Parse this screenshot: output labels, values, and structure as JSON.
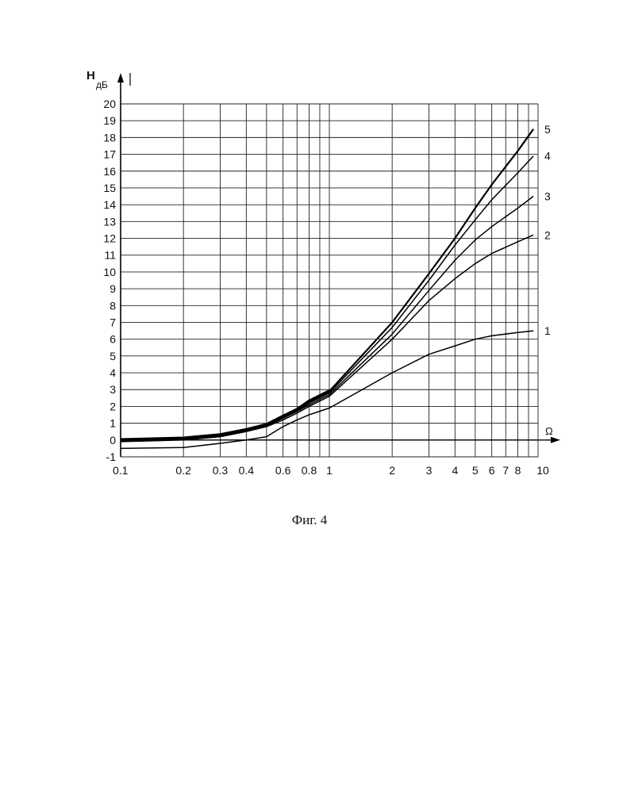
{
  "caption": "Фиг. 4",
  "chart_data": {
    "type": "line",
    "xscale": "log",
    "xlim": [
      0.1,
      10
    ],
    "ylim": [
      -1,
      20
    ],
    "grid": true,
    "ylabel_main": "H",
    "ylabel_sub": "дБ",
    "xlabel": "Ω",
    "x_ticks": [
      {
        "v": 0.1,
        "label": "0.1"
      },
      {
        "v": 0.2,
        "label": "0.2"
      },
      {
        "v": 0.3,
        "label": "0.3"
      },
      {
        "v": 0.4,
        "label": "0.4"
      },
      {
        "v": 0.6,
        "label": "0.6"
      },
      {
        "v": 0.8,
        "label": "0.8"
      },
      {
        "v": 1,
        "label": "1"
      },
      {
        "v": 2,
        "label": "2"
      },
      {
        "v": 3,
        "label": "3"
      },
      {
        "v": 4,
        "label": "4"
      },
      {
        "v": 5,
        "label": "5"
      },
      {
        "v": 6,
        "label": "6"
      },
      {
        "v": 7,
        "label": "7"
      },
      {
        "v": 8,
        "label": "8"
      },
      {
        "v": 10,
        "label": "10"
      }
    ],
    "y_ticks": [
      "-1",
      "0",
      "1",
      "2",
      "3",
      "4",
      "5",
      "6",
      "7",
      "8",
      "9",
      "10",
      "11",
      "12",
      "13",
      "14",
      "15",
      "16",
      "17",
      "18",
      "19",
      "20"
    ],
    "series": [
      {
        "name": "1",
        "x": [
          0.1,
          0.2,
          0.3,
          0.4,
          0.5,
          0.6,
          0.7,
          0.8,
          1,
          2,
          3,
          4,
          5,
          6,
          8,
          9.5
        ],
        "y": [
          -0.5,
          -0.45,
          -0.2,
          0.0,
          0.2,
          0.8,
          1.2,
          1.5,
          1.9,
          4.0,
          5.1,
          5.6,
          6.0,
          6.2,
          6.4,
          6.5
        ]
      },
      {
        "name": "2",
        "x": [
          0.1,
          0.2,
          0.3,
          0.4,
          0.5,
          0.6,
          0.7,
          0.8,
          1,
          2,
          3,
          4,
          5,
          6,
          8,
          9.5
        ],
        "y": [
          -0.1,
          0.0,
          0.2,
          0.5,
          0.8,
          1.2,
          1.6,
          2.0,
          2.6,
          6.0,
          8.3,
          9.6,
          10.5,
          11.1,
          11.8,
          12.2
        ]
      },
      {
        "name": "3",
        "x": [
          0.1,
          0.2,
          0.3,
          0.4,
          0.5,
          0.6,
          0.7,
          0.8,
          1,
          2,
          3,
          4,
          5,
          6,
          8,
          9.5
        ],
        "y": [
          0.0,
          0.1,
          0.25,
          0.55,
          0.85,
          1.3,
          1.7,
          2.1,
          2.7,
          6.3,
          8.9,
          10.7,
          11.9,
          12.7,
          13.8,
          14.5
        ]
      },
      {
        "name": "4",
        "x": [
          0.1,
          0.2,
          0.3,
          0.4,
          0.5,
          0.6,
          0.7,
          0.8,
          1,
          2,
          3,
          4,
          5,
          6,
          8,
          9.5
        ],
        "y": [
          0.0,
          0.1,
          0.3,
          0.6,
          0.9,
          1.35,
          1.75,
          2.2,
          2.8,
          6.7,
          9.5,
          11.6,
          13.1,
          14.3,
          15.9,
          16.9
        ]
      },
      {
        "name": "5",
        "x": [
          0.1,
          0.2,
          0.3,
          0.4,
          0.5,
          0.6,
          0.7,
          0.8,
          1,
          2,
          3,
          4,
          5,
          6,
          8,
          9.5
        ],
        "y": [
          0.0,
          0.1,
          0.3,
          0.6,
          0.9,
          1.4,
          1.8,
          2.3,
          2.9,
          7.0,
          9.9,
          12.0,
          13.8,
          15.2,
          17.2,
          18.5
        ]
      }
    ]
  }
}
